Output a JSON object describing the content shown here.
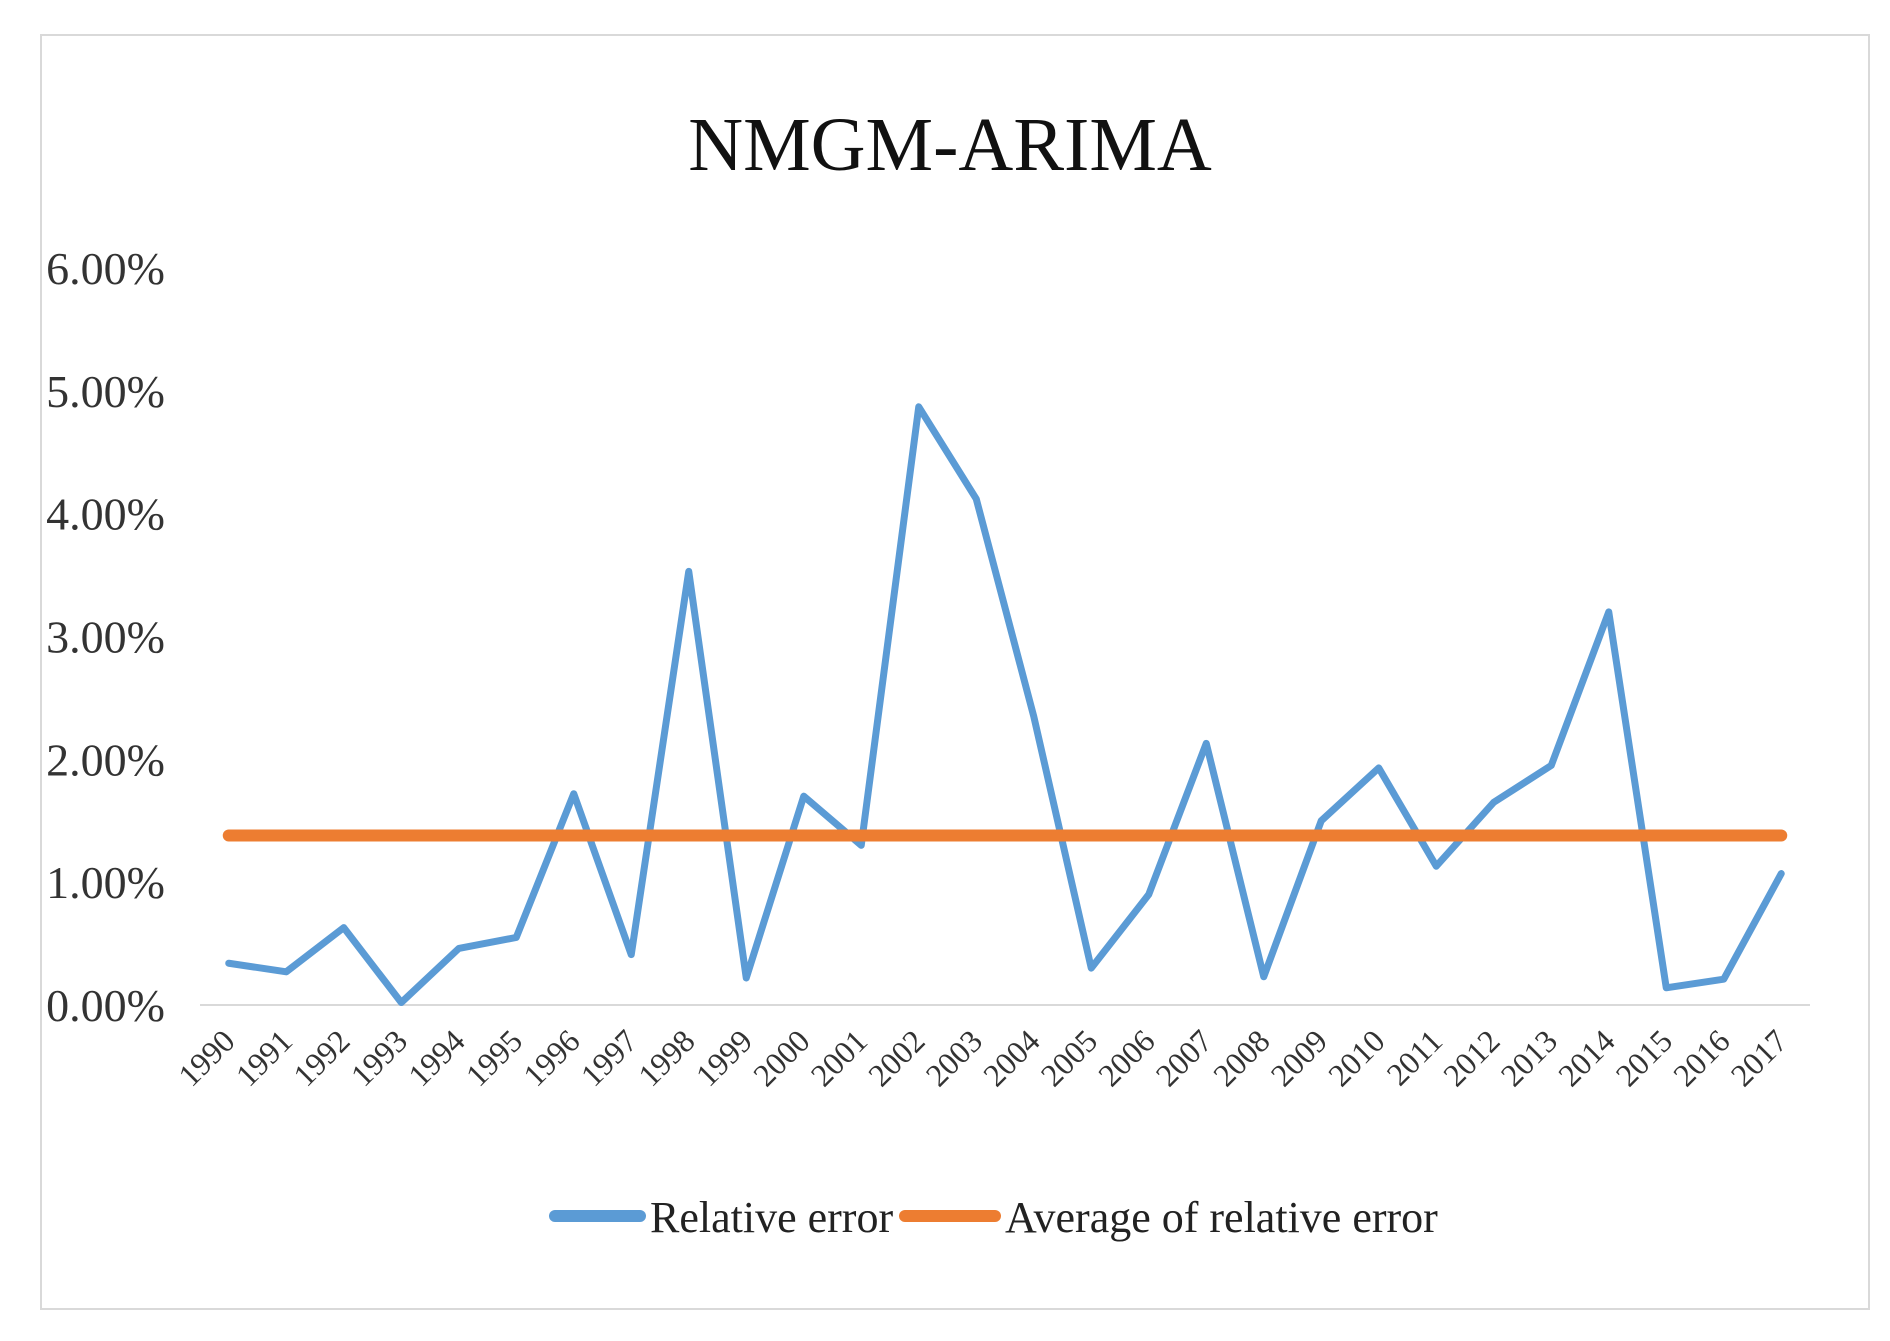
{
  "chart_data": {
    "type": "line",
    "title": "NMGM-ARIMA",
    "xlabel": "",
    "ylabel": "",
    "ylim": [
      0,
      6
    ],
    "y_ticks": [
      "0.00%",
      "1.00%",
      "2.00%",
      "3.00%",
      "4.00%",
      "5.00%",
      "6.00%"
    ],
    "y_tick_values": [
      0,
      1,
      2,
      3,
      4,
      5,
      6
    ],
    "categories": [
      "1990",
      "1991",
      "1992",
      "1993",
      "1994",
      "1995",
      "1996",
      "1997",
      "1998",
      "1999",
      "2000",
      "2001",
      "2002",
      "2003",
      "2004",
      "2005",
      "2006",
      "2007",
      "2008",
      "2009",
      "2010",
      "2011",
      "2012",
      "2013",
      "2014",
      "2015",
      "2016",
      "2017"
    ],
    "series": [
      {
        "name": "Relative error",
        "color": "#5b9bd5",
        "values": [
          0.34,
          0.27,
          0.63,
          0.02,
          0.46,
          0.55,
          1.72,
          0.41,
          3.53,
          0.22,
          1.7,
          1.3,
          4.87,
          4.12,
          2.35,
          0.3,
          0.9,
          2.13,
          0.23,
          1.5,
          1.93,
          1.13,
          1.65,
          1.95,
          3.2,
          0.14,
          0.21,
          1.07
        ]
      },
      {
        "name": "Average of relative error",
        "color": "#ed7d31",
        "values": [
          1.38,
          1.38,
          1.38,
          1.38,
          1.38,
          1.38,
          1.38,
          1.38,
          1.38,
          1.38,
          1.38,
          1.38,
          1.38,
          1.38,
          1.38,
          1.38,
          1.38,
          1.38,
          1.38,
          1.38,
          1.38,
          1.38,
          1.38,
          1.38,
          1.38,
          1.38,
          1.38,
          1.38
        ]
      }
    ],
    "grid": false,
    "legend_position": "bottom"
  }
}
